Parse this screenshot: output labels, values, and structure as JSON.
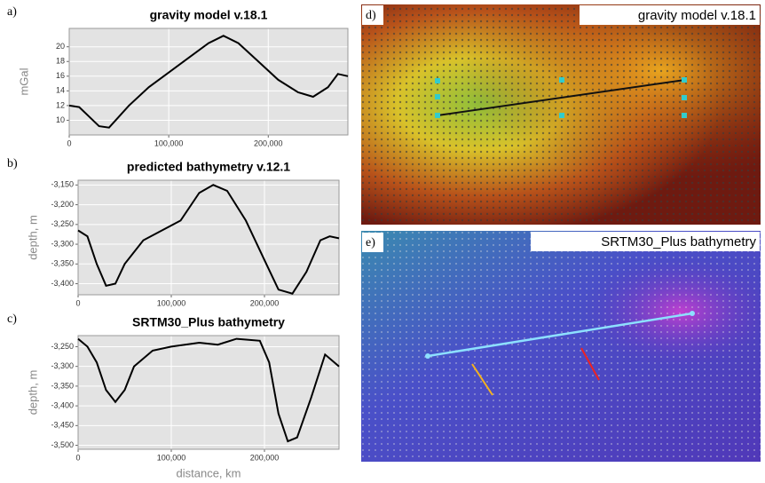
{
  "chart_data": [
    {
      "type": "line",
      "panel": "a)",
      "title": "gravity model v.18.1",
      "ylabel": "mGal",
      "color": "#000000",
      "x": [
        0,
        10000,
        20000,
        30000,
        40000,
        50000,
        60000,
        80000,
        100000,
        120000,
        140000,
        155000,
        170000,
        190000,
        210000,
        230000,
        245000,
        260000,
        270000,
        280000
      ],
      "values": [
        12,
        11.8,
        10.5,
        9.2,
        9.0,
        10.5,
        12,
        14.5,
        16.5,
        18.5,
        20.5,
        21.5,
        20.5,
        18,
        15.5,
        13.8,
        13.2,
        14.5,
        16.3,
        16
      ],
      "xlim": [
        0,
        280000
      ],
      "ylim": [
        8,
        22.5
      ],
      "xticks": [
        0,
        {
          "value": 100000,
          "label": "100,000"
        },
        {
          "value": 200000,
          "label": "200,000"
        }
      ],
      "yticks": [
        10,
        12,
        14,
        16,
        18,
        20
      ],
      "grid": true
    },
    {
      "type": "line",
      "panel": "b)",
      "title": "predicted bathymetry v.12.1",
      "ylabel": "depth, m",
      "color": "#000000",
      "x": [
        0,
        10000,
        20000,
        30000,
        40000,
        50000,
        70000,
        90000,
        110000,
        130000,
        145000,
        160000,
        180000,
        200000,
        215000,
        230000,
        245000,
        260000,
        270000,
        280000
      ],
      "values": [
        -3265,
        -3280,
        -3350,
        -3405,
        -3400,
        -3350,
        -3290,
        -3265,
        -3240,
        -3170,
        -3150,
        -3165,
        -3240,
        -3340,
        -3415,
        -3425,
        -3370,
        -3290,
        -3280,
        -3285
      ],
      "xlim": [
        0,
        280000
      ],
      "ylim": [
        -3428,
        -3138
      ],
      "xticks": [
        0,
        {
          "value": 100000,
          "label": "100,000"
        },
        {
          "value": 200000,
          "label": "200,000"
        }
      ],
      "yticks": [
        {
          "value": -3150,
          "label": "-3,150"
        },
        {
          "value": -3200,
          "label": "-3,200"
        },
        {
          "value": -3250,
          "label": "-3,250"
        },
        {
          "value": -3300,
          "label": "-3,300"
        },
        {
          "value": -3350,
          "label": "-3,350"
        },
        {
          "value": -3400,
          "label": "-3,400"
        }
      ],
      "grid": true
    },
    {
      "type": "line",
      "panel": "c)",
      "title": "SRTM30_Plus bathymetry",
      "ylabel": "depth, m",
      "xlabel": "distance, km",
      "color": "#000000",
      "x": [
        0,
        10000,
        20000,
        30000,
        40000,
        50000,
        60000,
        80000,
        100000,
        130000,
        150000,
        170000,
        195000,
        205000,
        215000,
        225000,
        235000,
        250000,
        265000,
        280000
      ],
      "values": [
        -3230,
        -3250,
        -3290,
        -3360,
        -3390,
        -3360,
        -3300,
        -3260,
        -3250,
        -3240,
        -3245,
        -3230,
        -3235,
        -3290,
        -3420,
        -3490,
        -3480,
        -3380,
        -3270,
        -3300
      ],
      "xlim": [
        0,
        280000
      ],
      "ylim": [
        -3510,
        -3222
      ],
      "xticks": [
        0,
        {
          "value": 100000,
          "label": "100,000"
        },
        {
          "value": 200000,
          "label": "200,000"
        }
      ],
      "yticks": [
        {
          "value": -3250,
          "label": "-3,250"
        },
        {
          "value": -3300,
          "label": "-3,300"
        },
        {
          "value": -3350,
          "label": "-3,350"
        },
        {
          "value": -3400,
          "label": "-3,400"
        },
        {
          "value": -3450,
          "label": "-3,450"
        },
        {
          "value": -3500,
          "label": "-3,500"
        }
      ],
      "grid": true
    }
  ],
  "maps": [
    {
      "label": "d)",
      "title": "gravity model v.18.1"
    },
    {
      "label": "e)",
      "title": "SRTM30_Plus bathymetry"
    }
  ]
}
